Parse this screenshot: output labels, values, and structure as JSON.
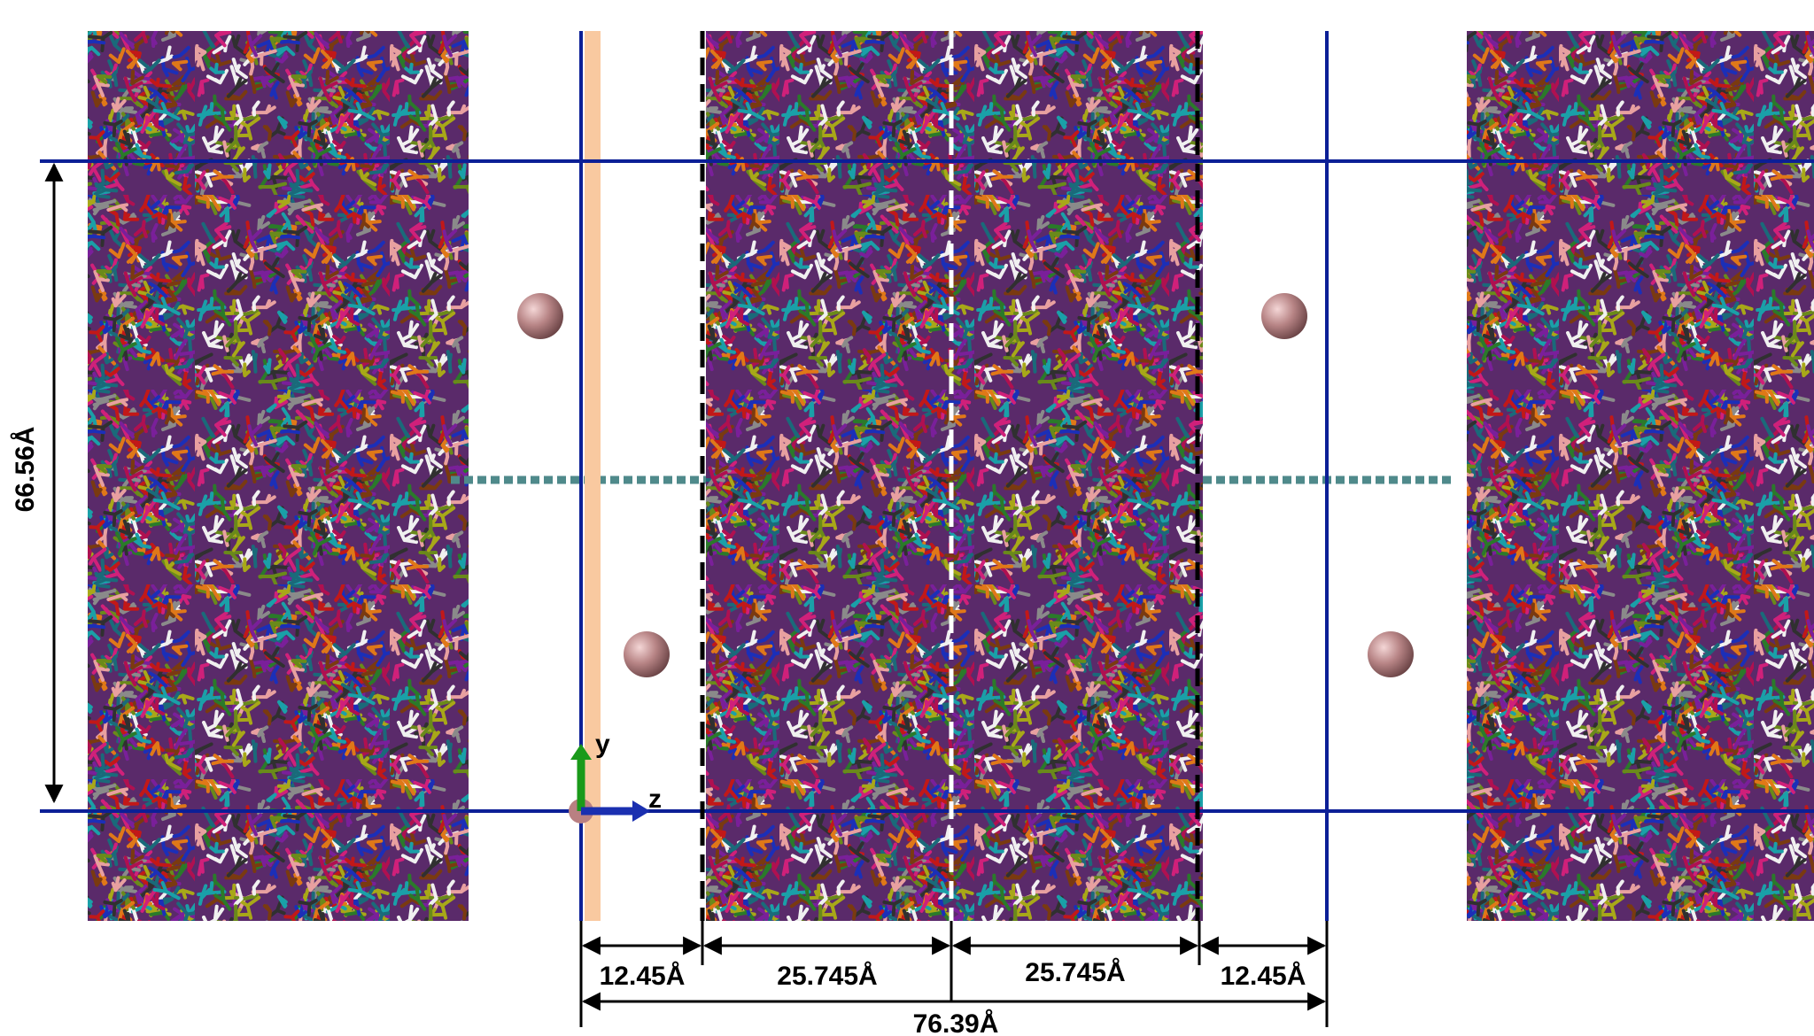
{
  "dimensions": {
    "height": "66.56Å",
    "segments": [
      "12.45Å",
      "25.745Å",
      "25.745Å",
      "12.45Å"
    ],
    "total": "76.39Å"
  },
  "axes": {
    "y": "y",
    "z": "z"
  }
}
